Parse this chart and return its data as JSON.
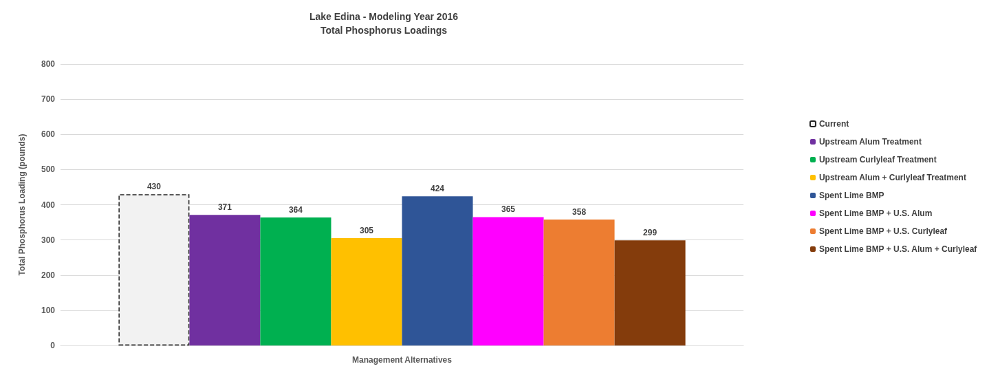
{
  "chart_data": {
    "type": "bar",
    "title": "Lake Edina - Modeling Year 2016",
    "subtitle": "Total Phosphorus Loadings",
    "xlabel": "Management Alternatives",
    "ylabel": "Total Phosphorus Loading (pounds)",
    "categories": [
      null
    ],
    "series": [
      {
        "name": "Current",
        "color": "#f2f2f2",
        "line_style": "dashed",
        "values": [
          430
        ]
      },
      {
        "name": "Upstream Alum Treatment",
        "color": "#7030a0",
        "values": [
          371
        ]
      },
      {
        "name": "Upstream Curlyleaf Treatment",
        "color": "#00b050",
        "values": [
          364
        ]
      },
      {
        "name": "Upstream Alum + Curlyleaf Treatment",
        "color": "#ffc000",
        "values": [
          305
        ]
      },
      {
        "name": "Spent Lime BMP",
        "color": "#2f5597",
        "values": [
          424
        ]
      },
      {
        "name": "Spent Lime BMP + U.S. Alum",
        "color": "#ff00ff",
        "values": [
          365
        ]
      },
      {
        "name": "Spent Lime BMP + U.S. Curlyleaf",
        "color": "#ed7d31",
        "values": [
          358
        ]
      },
      {
        "name": "Spent Lime BMP + U.S. Alum + Curlyleaf",
        "color": "#843c0c",
        "values": [
          299
        ]
      }
    ],
    "ylim": [
      0,
      800
    ],
    "yticks": [
      0,
      100,
      200,
      300,
      400,
      500,
      600,
      700,
      800
    ],
    "grid": "y",
    "legend": "right",
    "data_labels": true
  }
}
